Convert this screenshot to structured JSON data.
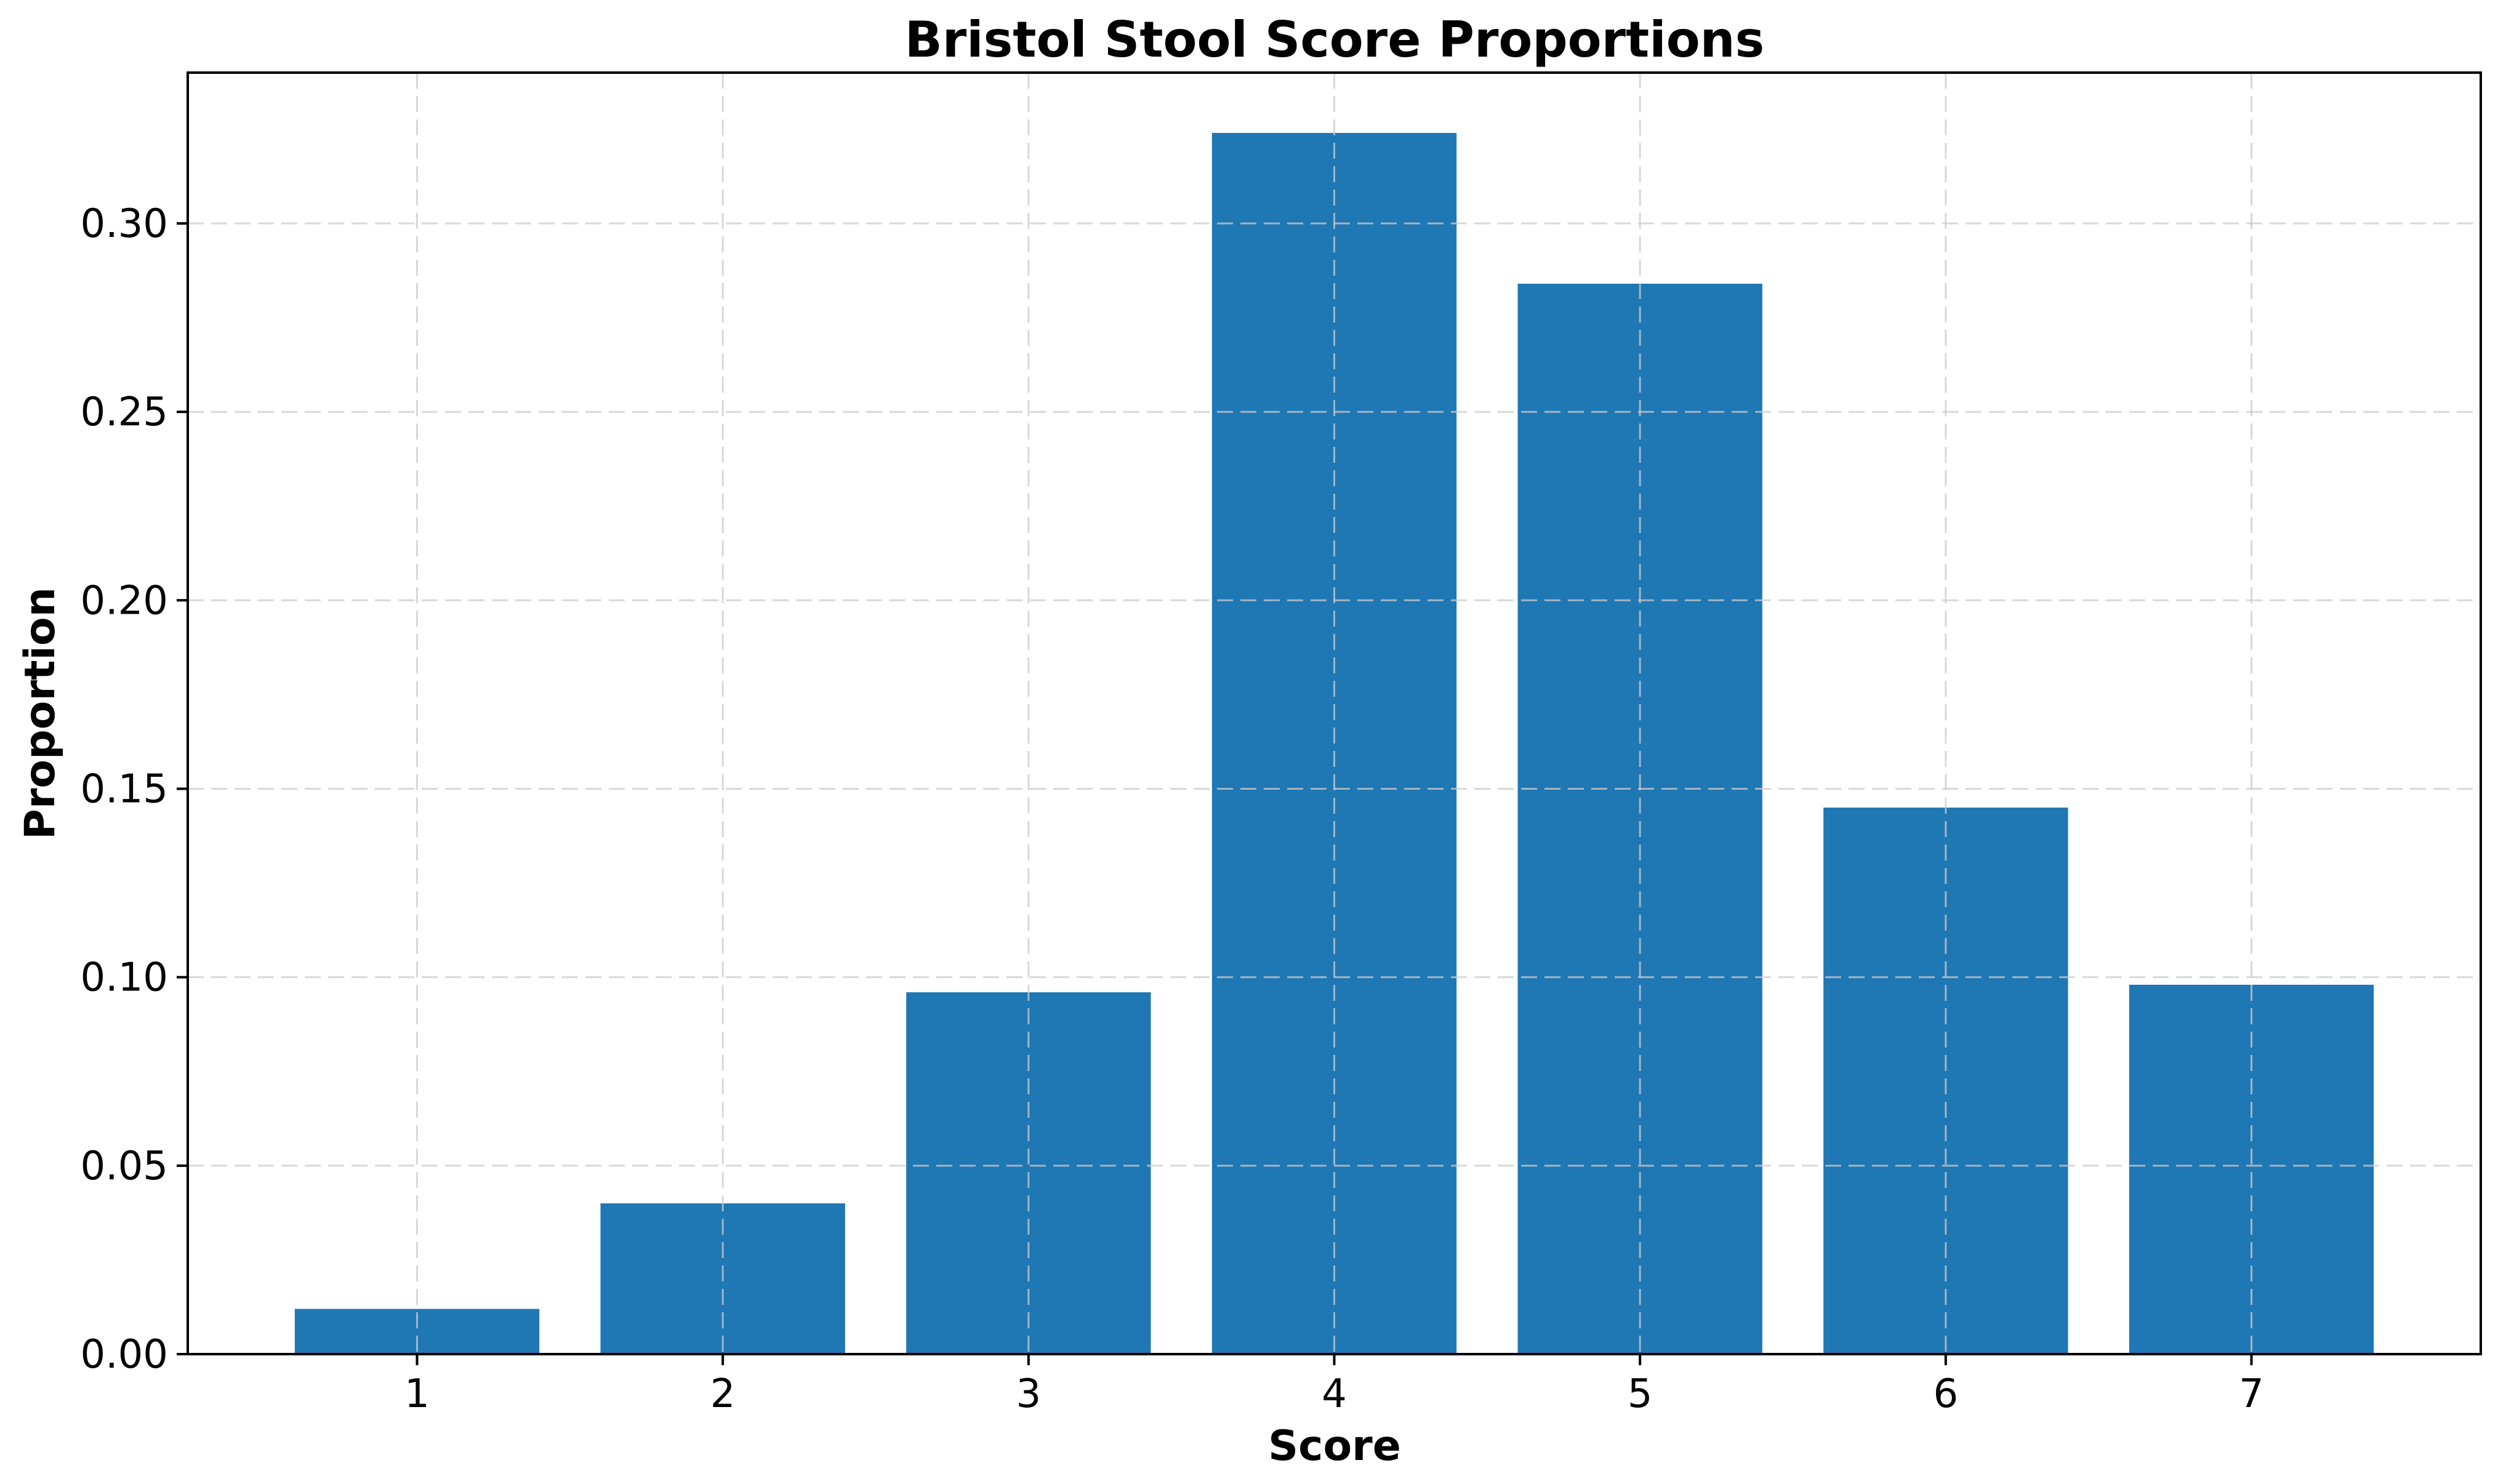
{
  "chart_data": {
    "type": "bar",
    "title": "Bristol Stool Score Proportions",
    "xlabel": "Score",
    "ylabel": "Proportion",
    "categories": [
      "1",
      "2",
      "3",
      "4",
      "5",
      "6",
      "7"
    ],
    "values": [
      0.012,
      0.04,
      0.096,
      0.324,
      0.284,
      0.145,
      0.098
    ],
    "ylim": [
      0,
      0.34
    ],
    "yticks": [
      "0.00",
      "0.05",
      "0.10",
      "0.15",
      "0.20",
      "0.25",
      "0.30"
    ],
    "grid": true,
    "bar_color": "#1f77b4"
  }
}
